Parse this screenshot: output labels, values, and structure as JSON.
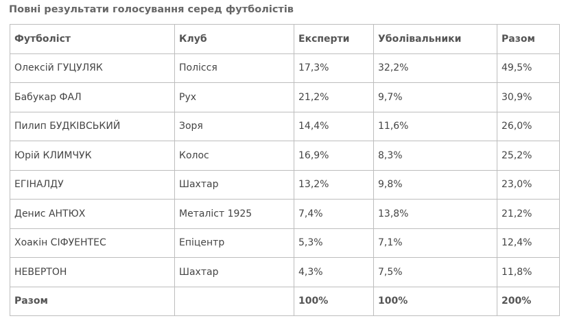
{
  "caption": "Повні результати голосування серед футболістів",
  "table": {
    "headers": [
      "Футболіст",
      "Клуб",
      "Експерти",
      "Уболівальники",
      "Разом"
    ],
    "rows": [
      [
        "Олексій ГУЦУЛЯК",
        "Полісся",
        "17,3%",
        "32,2%",
        "49,5%"
      ],
      [
        "Бабукар ФАЛ",
        "Рух",
        "21,2%",
        "9,7%",
        "30,9%"
      ],
      [
        "Пилип БУДКІВСЬКИЙ",
        "Зоря",
        "14,4%",
        "11,6%",
        "26,0%"
      ],
      [
        "Юрій КЛИМЧУК",
        "Колос",
        "16,9%",
        "8,3%",
        "25,2%"
      ],
      [
        "ЕГІНАЛДУ",
        "Шахтар",
        "13,2%",
        "9,8%",
        "23,0%"
      ],
      [
        "Денис АНТЮХ",
        "Металіст 1925",
        "7,4%",
        "13,8%",
        "21,2%"
      ],
      [
        "Хоакін СІФУЕНТЕС",
        "Епіцентр",
        "5,3%",
        "7,1%",
        "12,4%"
      ],
      [
        "НЕВЕРТОН",
        "Шахтар",
        "4,3%",
        "7,5%",
        "11,8%"
      ]
    ],
    "total": [
      "Разом",
      "",
      "100%",
      "100%",
      "200%"
    ]
  }
}
